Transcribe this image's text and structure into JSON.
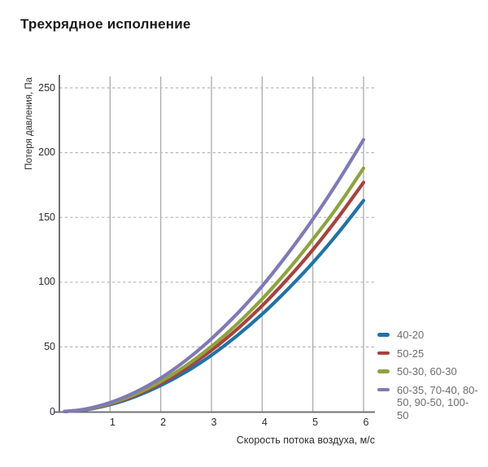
{
  "title": "Трехрядное исполнение",
  "colors": {
    "title_text": "#1a1a1a",
    "tick_text": "#2e2e2e",
    "legend_text": "#6d6e70",
    "axis_line": "#717171",
    "grid_vertical": "#ababab",
    "grid_horizontal": "#b8b8b8",
    "series_blue": "#1e73a9",
    "series_red": "#a9413e",
    "series_green": "#8ea43c",
    "series_purple": "#7f79b7"
  },
  "chart_data": {
    "type": "line",
    "title": "Трехрядное исполнение",
    "xlabel": "Скорость потока воздуха, м/с",
    "ylabel": "Потеря давления, Па",
    "xlim": [
      0,
      6
    ],
    "ylim": [
      0,
      250
    ],
    "x_ticks": [
      1,
      2,
      3,
      4,
      5,
      6
    ],
    "y_ticks": [
      0,
      50,
      100,
      150,
      200,
      250
    ],
    "grid": {
      "vertical": "solid",
      "horizontal": "dashed"
    },
    "legend_position": "right-bottom",
    "x": [
      0.1,
      0.5,
      1,
      1.5,
      2,
      2.5,
      3,
      3.5,
      4,
      4.5,
      5,
      5.5,
      6
    ],
    "series": [
      {
        "name": "40-20",
        "color": "#1e73a9",
        "values": [
          0.1,
          1.4,
          5.4,
          11.7,
          20.2,
          30.8,
          43.6,
          58.5,
          75.3,
          94.3,
          115,
          138,
          163
        ]
      },
      {
        "name": "50-25",
        "color": "#a9413e",
        "values": [
          0.1,
          1.6,
          5.9,
          12.7,
          21.9,
          33.5,
          47.4,
          63.5,
          81.8,
          102.5,
          125,
          150,
          177
        ]
      },
      {
        "name": "50-30, 60-30",
        "color": "#8ea43c",
        "values": [
          0.1,
          1.7,
          6.3,
          13.5,
          23.3,
          35.6,
          50.4,
          67.5,
          87,
          109,
          133,
          159,
          188
        ]
      },
      {
        "name": "60-35, 70-40, 80-50, 90-50, 100-50",
        "color": "#7f79b7",
        "values": [
          0.1,
          1.9,
          7,
          15.1,
          26,
          39.8,
          56.3,
          75.4,
          97,
          121.7,
          148.5,
          178,
          210
        ]
      }
    ]
  }
}
